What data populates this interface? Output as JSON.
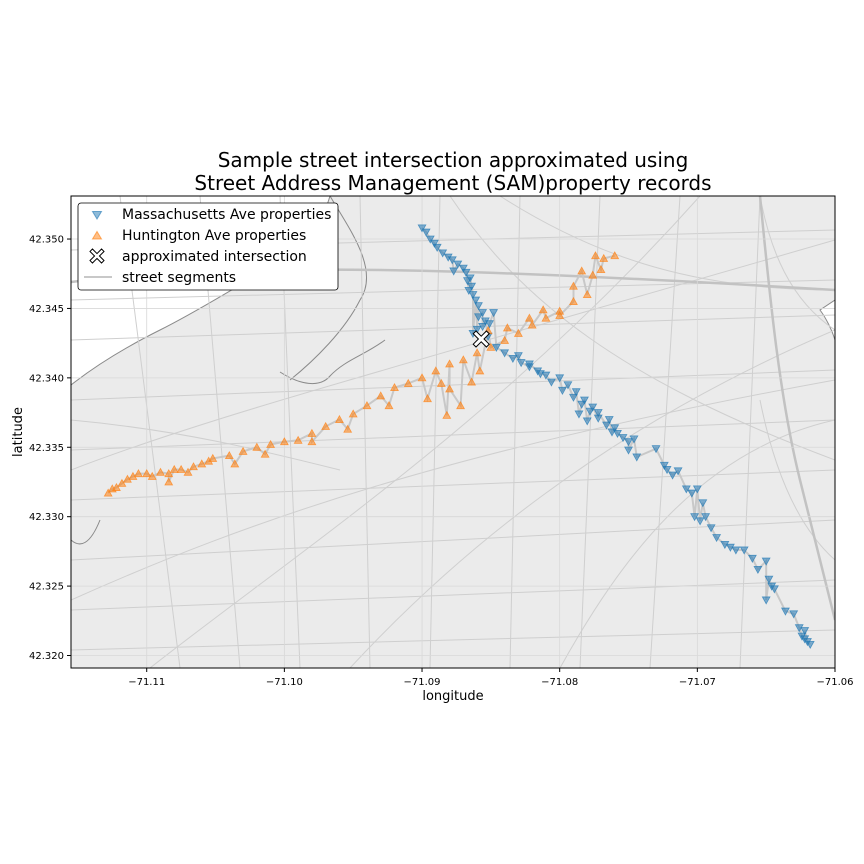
{
  "chart_data": {
    "type": "scatter",
    "title_lines": [
      "Sample street intersection approximated using",
      "Street Address Management (SAM)property records"
    ],
    "xlabel": "longitude",
    "ylabel": "latitude",
    "xlim": [
      -71.1155,
      -71.06
    ],
    "ylim": [
      42.3191,
      42.3531
    ],
    "x_ticks": [
      -71.11,
      -71.1,
      -71.09,
      -71.08,
      -71.07,
      -71.06
    ],
    "x_tick_labels": [
      "−71.11",
      "−71.10",
      "−71.09",
      "−71.08",
      "−71.07",
      "−71.06"
    ],
    "y_ticks": [
      42.32,
      42.325,
      42.33,
      42.335,
      42.34,
      42.345,
      42.35
    ],
    "y_tick_labels": [
      "42.320",
      "42.325",
      "42.330",
      "42.335",
      "42.340",
      "42.345",
      "42.350"
    ],
    "grid": true,
    "basemap": "grey street map",
    "legend_position": "upper left",
    "legend": [
      {
        "label": "Massachusetts Ave properties",
        "marker": "triangle-down",
        "color": "#1f77b4"
      },
      {
        "label": "Huntington Ave properties",
        "marker": "triangle-up",
        "color": "#ff7f0e"
      },
      {
        "label": "approximated intersection",
        "marker": "x-filled",
        "color": "#ffffff"
      },
      {
        "label": "street segments",
        "marker": "line",
        "color": "#c8c8c8"
      }
    ],
    "series": [
      {
        "name": "Massachusetts Ave properties",
        "marker": "triangle-down",
        "color": "#1f77b4",
        "points": [
          [
            -71.09,
            42.3508
          ],
          [
            -71.0897,
            42.3505
          ],
          [
            -71.0894,
            42.35
          ],
          [
            -71.0891,
            42.3497
          ],
          [
            -71.0889,
            42.3494
          ],
          [
            -71.0885,
            42.349
          ],
          [
            -71.0881,
            42.3487
          ],
          [
            -71.0878,
            42.3485
          ],
          [
            -71.0874,
            42.3482
          ],
          [
            -71.087,
            42.3479
          ],
          [
            -71.0877,
            42.3477
          ],
          [
            -71.0868,
            42.3476
          ],
          [
            -71.0865,
            42.3472
          ],
          [
            -71.0867,
            42.347
          ],
          [
            -71.0864,
            42.3466
          ],
          [
            -71.0866,
            42.3463
          ],
          [
            -71.0863,
            42.346
          ],
          [
            -71.0861,
            42.3456
          ],
          [
            -71.0859,
            42.3452
          ],
          [
            -71.0856,
            42.3447
          ],
          [
            -71.0859,
            42.3444
          ],
          [
            -71.0854,
            42.3441
          ],
          [
            -71.0856,
            42.3437
          ],
          [
            -71.0851,
            42.3439
          ],
          [
            -71.086,
            42.3435
          ],
          [
            -71.0863,
            42.3432
          ],
          [
            -71.0848,
            42.3447
          ],
          [
            -71.0852,
            42.343
          ],
          [
            -71.0846,
            42.3422
          ],
          [
            -71.084,
            42.3418
          ],
          [
            -71.0834,
            42.3414
          ],
          [
            -71.0828,
            42.3411
          ],
          [
            -71.0822,
            42.3408
          ],
          [
            -71.0816,
            42.3405
          ],
          [
            -71.081,
            42.3402
          ],
          [
            -71.083,
            42.3416
          ],
          [
            -71.0822,
            42.341
          ],
          [
            -71.0814,
            42.3403
          ],
          [
            -71.0806,
            42.3397
          ],
          [
            -71.0798,
            42.3391
          ],
          [
            -71.08,
            42.34
          ],
          [
            -71.0794,
            42.3395
          ],
          [
            -71.0788,
            42.339
          ],
          [
            -71.0782,
            42.3384
          ],
          [
            -71.0776,
            42.3379
          ],
          [
            -71.079,
            42.3386
          ],
          [
            -71.0784,
            42.3381
          ],
          [
            -71.0778,
            42.3376
          ],
          [
            -71.0772,
            42.3371
          ],
          [
            -71.0766,
            42.3366
          ],
          [
            -71.0786,
            42.3374
          ],
          [
            -71.078,
            42.3369
          ],
          [
            -71.0772,
            42.3375
          ],
          [
            -71.0764,
            42.337
          ],
          [
            -71.076,
            42.3364
          ],
          [
            -71.0758,
            42.336
          ],
          [
            -71.0754,
            42.3357
          ],
          [
            -71.075,
            42.3354
          ],
          [
            -71.0746,
            42.3356
          ],
          [
            -71.0762,
            42.3361
          ],
          [
            -71.075,
            42.3348
          ],
          [
            -71.0744,
            42.3343
          ],
          [
            -71.073,
            42.3349
          ],
          [
            -71.0724,
            42.3337
          ],
          [
            -71.0722,
            42.3334
          ],
          [
            -71.0718,
            42.333
          ],
          [
            -71.0714,
            42.3333
          ],
          [
            -71.0708,
            42.332
          ],
          [
            -71.0704,
            42.3317
          ],
          [
            -71.07,
            42.332
          ],
          [
            -71.0696,
            42.331
          ],
          [
            -71.0702,
            42.33
          ],
          [
            -71.0698,
            42.3297
          ],
          [
            -71.0694,
            42.33
          ],
          [
            -71.069,
            42.3292
          ],
          [
            -71.0686,
            42.3285
          ],
          [
            -71.068,
            42.328
          ],
          [
            -71.0676,
            42.3278
          ],
          [
            -71.0672,
            42.3276
          ],
          [
            -71.0666,
            42.3276
          ],
          [
            -71.066,
            42.327
          ],
          [
            -71.0656,
            42.3262
          ],
          [
            -71.065,
            42.3268
          ],
          [
            -71.0648,
            42.3255
          ],
          [
            -71.0646,
            42.325
          ],
          [
            -71.0644,
            42.3248
          ],
          [
            -71.065,
            42.324
          ],
          [
            -71.0636,
            42.3232
          ],
          [
            -71.063,
            42.323
          ],
          [
            -71.0626,
            42.322
          ],
          [
            -71.0624,
            42.3214
          ],
          [
            -71.0622,
            42.3212
          ],
          [
            -71.062,
            42.321
          ],
          [
            -71.0618,
            42.3208
          ],
          [
            -71.0622,
            42.3218
          ]
        ]
      },
      {
        "name": "Huntington Ave properties",
        "marker": "triangle-up",
        "color": "#ff7f0e",
        "points": [
          [
            -71.1128,
            42.3317
          ],
          [
            -71.1125,
            42.332
          ],
          [
            -71.1122,
            42.3321
          ],
          [
            -71.1118,
            42.3324
          ],
          [
            -71.1114,
            42.3327
          ],
          [
            -71.111,
            42.3329
          ],
          [
            -71.1106,
            42.3331
          ],
          [
            -71.11,
            42.3331
          ],
          [
            -71.1096,
            42.3329
          ],
          [
            -71.109,
            42.3332
          ],
          [
            -71.1084,
            42.3331
          ],
          [
            -71.108,
            42.3334
          ],
          [
            -71.1075,
            42.3334
          ],
          [
            -71.107,
            42.3332
          ],
          [
            -71.1066,
            42.3336
          ],
          [
            -71.106,
            42.3338
          ],
          [
            -71.1055,
            42.334
          ],
          [
            -71.1052,
            42.3342
          ],
          [
            -71.104,
            42.3344
          ],
          [
            -71.103,
            42.3347
          ],
          [
            -71.102,
            42.335
          ],
          [
            -71.101,
            42.3352
          ],
          [
            -71.1,
            42.3354
          ],
          [
            -71.099,
            42.3355
          ],
          [
            -71.098,
            42.336
          ],
          [
            -71.097,
            42.3365
          ],
          [
            -71.096,
            42.337
          ],
          [
            -71.095,
            42.3374
          ],
          [
            -71.094,
            42.338
          ],
          [
            -71.093,
            42.3387
          ],
          [
            -71.092,
            42.3393
          ],
          [
            -71.091,
            42.3396
          ],
          [
            -71.09,
            42.34
          ],
          [
            -71.089,
            42.3405
          ],
          [
            -71.088,
            42.341
          ],
          [
            -71.087,
            42.3413
          ],
          [
            -71.086,
            42.3418
          ],
          [
            -71.085,
            42.3422
          ],
          [
            -71.084,
            42.3427
          ],
          [
            -71.083,
            42.3432
          ],
          [
            -71.082,
            42.3438
          ],
          [
            -71.081,
            42.3443
          ],
          [
            -71.08,
            42.3448
          ],
          [
            -71.079,
            42.3455
          ],
          [
            -71.078,
            42.346
          ],
          [
            -71.079,
            42.3466
          ],
          [
            -71.0776,
            42.3474
          ],
          [
            -71.077,
            42.3478
          ],
          [
            -71.0784,
            42.3477
          ],
          [
            -71.0768,
            42.3486
          ],
          [
            -71.076,
            42.3488
          ],
          [
            -71.0774,
            42.3488
          ],
          [
            -71.0852,
            42.3434
          ],
          [
            -71.0838,
            42.3436
          ],
          [
            -71.0822,
            42.3443
          ],
          [
            -71.0812,
            42.3449
          ],
          [
            -71.08,
            42.3445
          ],
          [
            -71.0896,
            42.3385
          ],
          [
            -71.0886,
            42.3396
          ],
          [
            -71.088,
            42.3392
          ],
          [
            -71.0864,
            42.3397
          ],
          [
            -71.0858,
            42.3405
          ],
          [
            -71.0872,
            42.338
          ],
          [
            -71.0882,
            42.3373
          ],
          [
            -71.0924,
            42.338
          ],
          [
            -71.0954,
            42.3363
          ],
          [
            -71.098,
            42.3354
          ],
          [
            -71.1014,
            42.3345
          ],
          [
            -71.1036,
            42.3338
          ],
          [
            -71.1084,
            42.3325
          ]
        ]
      },
      {
        "name": "approximated intersection",
        "marker": "x-filled",
        "color": "#ffffff",
        "points": [
          [
            -71.0857,
            42.3428
          ]
        ]
      }
    ]
  }
}
